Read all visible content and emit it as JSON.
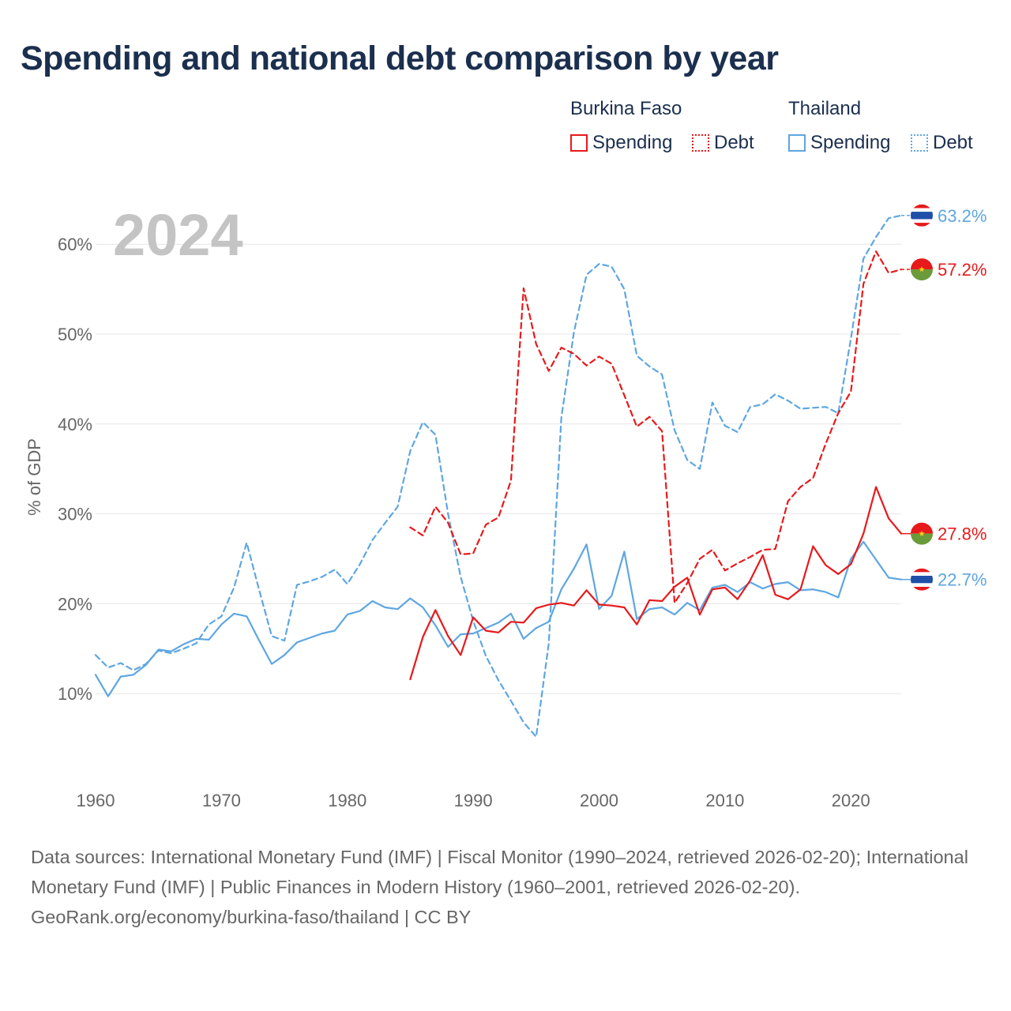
{
  "title": "Spending and national debt comparison by year",
  "legend": {
    "groups": [
      {
        "country": "Burkina Faso",
        "spending_label": "Spending",
        "debt_label": "Debt",
        "color": "#e8191b"
      },
      {
        "country": "Thailand",
        "spending_label": "Spending",
        "debt_label": "Debt",
        "color": "#5ea6e2"
      }
    ]
  },
  "footer": {
    "sources": "Data sources: International Monetary Fund (IMF) | Fiscal Monitor (1990–2024, retrieved 2026-02-20); International Monetary Fund (IMF) | Public Finances in Modern History (1960–2001, retrieved 2026-02-20).",
    "credit": "GeoRank.org/economy/burkina-faso/thailand | CC BY"
  },
  "chart_data": {
    "type": "line",
    "year_label": "2024",
    "ylabel": "% of GDP",
    "xlabel": "",
    "xlim": [
      1960,
      2024
    ],
    "ylim": [
      0,
      65
    ],
    "x_ticks": [
      1960,
      1970,
      1980,
      1990,
      2000,
      2010,
      2020
    ],
    "x_tick_labels": [
      "1960",
      "1970",
      "1980",
      "1990",
      "2000",
      "2010",
      "2020"
    ],
    "y_ticks": [
      10,
      20,
      30,
      40,
      50,
      60
    ],
    "y_tick_labels": [
      "10%",
      "20%",
      "30%",
      "40%",
      "50%",
      "60%"
    ],
    "grid": true,
    "series": [
      {
        "name": "Thailand Debt",
        "country": "Thailand",
        "kind": "debt",
        "style": "dashed",
        "color": "#5ea6e2",
        "end_label": "63.2%",
        "start_year": 1960,
        "values": [
          14.3,
          12.9,
          13.4,
          12.6,
          13.3,
          14.8,
          14.5,
          15.0,
          15.6,
          17.7,
          18.6,
          21.8,
          26.8,
          21.5,
          16.4,
          15.9,
          22.1,
          22.5,
          23.0,
          23.8,
          22.2,
          24.4,
          27.1,
          29.0,
          30.8,
          37.0,
          40.2,
          38.8,
          30.0,
          23.0,
          18.1,
          14.2,
          11.5,
          9.2,
          6.8,
          5.2,
          15.6,
          40.7,
          50.2,
          56.6,
          57.8,
          57.5,
          55.0,
          47.6,
          46.4,
          45.5,
          39.3,
          36.0,
          35.0,
          42.4,
          39.8,
          39.1,
          41.9,
          42.2,
          43.3,
          42.6,
          41.7,
          41.8,
          41.9,
          41.2,
          49.5,
          58.4,
          60.8,
          62.9,
          63.2
        ]
      },
      {
        "name": "Thailand Spending",
        "country": "Thailand",
        "kind": "spending",
        "style": "solid",
        "color": "#5ea6e2",
        "end_label": "22.7%",
        "start_year": 1960,
        "values": [
          12.1,
          9.7,
          11.9,
          12.1,
          13.2,
          14.9,
          14.7,
          15.5,
          16.1,
          16.0,
          17.7,
          18.9,
          18.6,
          15.9,
          13.3,
          14.3,
          15.7,
          16.2,
          16.7,
          17.0,
          18.8,
          19.2,
          20.3,
          19.6,
          19.4,
          20.6,
          19.6,
          17.6,
          15.2,
          16.6,
          16.7,
          17.3,
          17.9,
          18.9,
          16.1,
          17.3,
          18.0,
          21.6,
          23.9,
          26.6,
          19.4,
          20.9,
          25.8,
          18.3,
          19.4,
          19.6,
          18.8,
          20.1,
          19.3,
          21.8,
          22.1,
          21.3,
          22.4,
          21.7,
          22.2,
          22.4,
          21.5,
          21.6,
          21.3,
          20.7,
          25.0,
          26.9,
          24.9,
          22.9,
          22.7
        ]
      },
      {
        "name": "Burkina Faso Debt",
        "country": "Burkina Faso",
        "kind": "debt",
        "style": "dashed",
        "color": "#e8191b",
        "end_label": "57.2%",
        "start_year": 1985,
        "values": [
          28.5,
          27.6,
          30.8,
          29.0,
          25.5,
          25.6,
          28.8,
          29.6,
          33.7,
          55.1,
          48.9,
          45.9,
          48.5,
          47.8,
          46.5,
          47.5,
          46.7,
          43.2,
          39.7,
          40.8,
          39.2,
          20.1,
          22.3,
          25.0,
          26.0,
          23.7,
          24.5,
          25.2,
          26.0,
          26.1,
          31.4,
          33.0,
          34.0,
          37.8,
          41.2,
          43.6,
          55.6,
          59.2,
          56.8,
          57.2
        ]
      },
      {
        "name": "Burkina Faso Spending",
        "country": "Burkina Faso",
        "kind": "spending",
        "style": "solid",
        "color": "#e8191b",
        "end_label": "27.8%",
        "start_year": 1985,
        "values": [
          11.6,
          16.3,
          19.3,
          16.4,
          14.3,
          18.5,
          17.0,
          16.8,
          18.0,
          17.9,
          19.5,
          19.9,
          20.1,
          19.8,
          21.5,
          19.9,
          19.8,
          19.6,
          17.7,
          20.4,
          20.3,
          21.9,
          22.9,
          18.8,
          21.6,
          21.8,
          20.5,
          22.6,
          25.4,
          21.0,
          20.5,
          21.6,
          26.4,
          24.3,
          23.3,
          24.4,
          27.8,
          33.0,
          29.5,
          27.8
        ]
      }
    ]
  }
}
